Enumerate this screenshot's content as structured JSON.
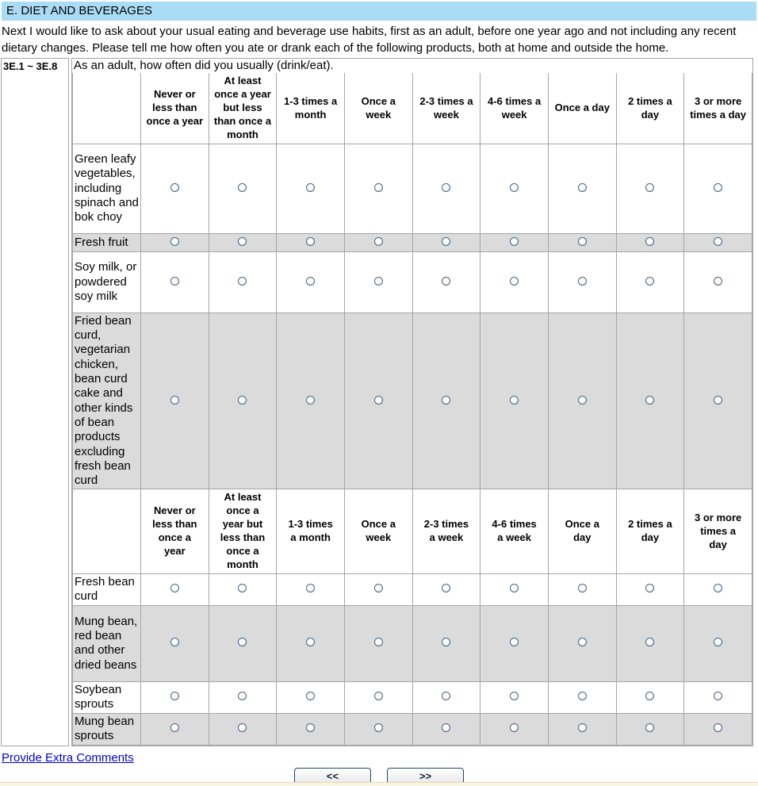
{
  "page": {
    "section_title": "E. DIET AND BEVERAGES",
    "intro": "Next I would like to ask about your usual eating and beverage use habits, first as an adult, before one year ago and not including any recent dietary changes. Please tell me how often you ate or drank each of the following products, both at home and outside the home.",
    "question_code": "3E.1 ~ 3E.8",
    "question_text": "As an adult, how often did you usually (drink/eat).",
    "footer_link_label": "Provide Extra Comments",
    "nav": {
      "back_label": "<<",
      "forward_label": ">>"
    },
    "colors": {
      "titlebar_bg": "#aadcf6",
      "alt_row_bg": "#dbdbdb",
      "grid_border": "#a6a6a6",
      "link_color": "#0000cc",
      "button_border": "#24466e",
      "footer_strip_bg": "#f9f4e4"
    }
  },
  "table": {
    "headers": [
      "Never or less than once a year",
      "At least once a year but less than once a month",
      "1-3 times a month",
      "Once a week",
      "2-3 times a week",
      "4-6 times a week",
      "Once a day",
      "2 times a day",
      "3 or more times a day"
    ],
    "rows": [
      {
        "label": "Green leafy vegetables, including spinach and bok choy"
      },
      {
        "label": "Fresh fruit"
      },
      {
        "label": "Soy milk, or powdered soy milk"
      },
      {
        "label": "Fried bean curd, vegetarian chicken, bean curd cake and other kinds of bean products excluding fresh bean curd"
      },
      {
        "label": "Fresh bean curd"
      },
      {
        "label": "Mung bean, red bean and other dried beans"
      },
      {
        "label": "Soybean sprouts"
      },
      {
        "label": "Mung bean sprouts"
      }
    ]
  }
}
